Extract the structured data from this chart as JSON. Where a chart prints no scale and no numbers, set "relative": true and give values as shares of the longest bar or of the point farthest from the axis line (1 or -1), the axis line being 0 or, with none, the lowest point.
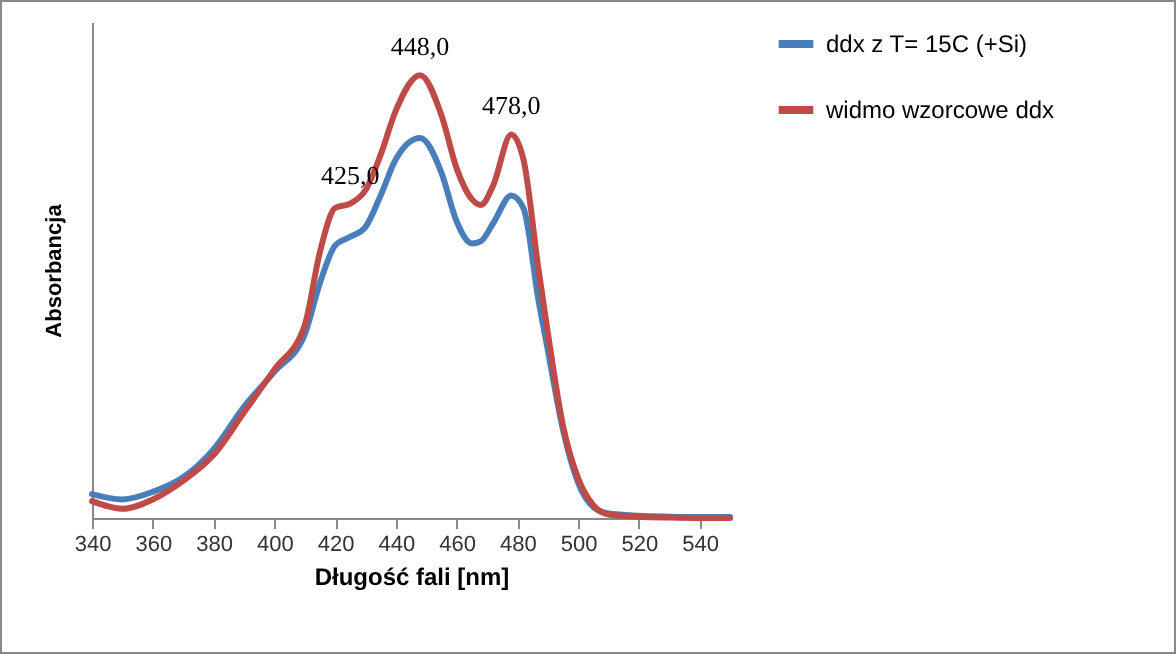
{
  "chart_data": {
    "type": "line",
    "relative": true,
    "xlabel": "Długość fali [nm]",
    "ylabel": "Absorbancja",
    "xlim": [
      340,
      550
    ],
    "xticks": [
      340,
      360,
      380,
      400,
      420,
      440,
      460,
      480,
      500,
      520,
      540
    ],
    "legend": "right",
    "grid": false,
    "marker": "none",
    "line_style": "solid",
    "x": [
      340,
      350,
      360,
      370,
      380,
      390,
      400,
      410,
      415,
      420,
      425,
      430,
      435,
      440,
      448,
      455,
      460,
      465,
      468,
      472,
      478,
      482,
      487,
      490,
      495,
      500,
      505,
      510,
      520,
      530,
      540,
      550
    ],
    "series": [
      {
        "name": "ddx z T= 15C (+Si)",
        "color": "#4a7ebb",
        "values": [
          0.054,
          0.042,
          0.059,
          0.092,
          0.155,
          0.251,
          0.33,
          0.414,
          0.53,
          0.615,
          0.635,
          0.657,
          0.728,
          0.81,
          0.858,
          0.78,
          0.67,
          0.62,
          0.625,
          0.665,
          0.728,
          0.7,
          0.49,
          0.38,
          0.2,
          0.08,
          0.025,
          0.01,
          0.005,
          0.003,
          0.002,
          0.002
        ]
      },
      {
        "name": "widmo wzorcowe ddx",
        "color": "#be4b48",
        "values": [
          0.038,
          0.021,
          0.042,
          0.084,
          0.142,
          0.238,
          0.335,
          0.435,
          0.6,
          0.7,
          0.71,
          0.74,
          0.82,
          0.92,
          1.0,
          0.91,
          0.79,
          0.72,
          0.707,
          0.75,
          0.866,
          0.81,
          0.56,
          0.42,
          0.21,
          0.09,
          0.029,
          0.008,
          0.003,
          0.001,
          0,
          0
        ]
      }
    ],
    "annotations": [
      {
        "text": "425,0",
        "x": 425,
        "y": 0.71
      },
      {
        "text": "448,0",
        "x": 448,
        "y": 1.0
      },
      {
        "text": "478,0",
        "x": 478,
        "y": 0.866
      }
    ]
  }
}
